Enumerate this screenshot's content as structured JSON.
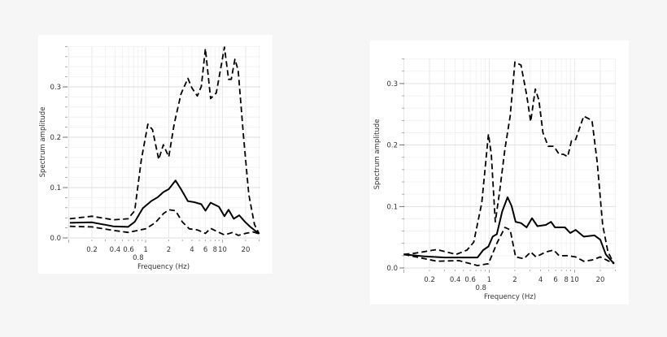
{
  "chart_data": [
    {
      "type": "line",
      "xlabel": "Frequency (Hz)",
      "ylabel": "Spectrum amplitude",
      "xscale": "log",
      "xlim": [
        0.1,
        30
      ],
      "ylim": [
        0,
        0.38
      ],
      "grid": true,
      "xticks": [
        "0.2",
        "0.4",
        "0.6",
        "0.8",
        "1",
        "2",
        "4",
        "6",
        "8",
        "10",
        "20"
      ],
      "xtick_values": [
        0.2,
        0.4,
        0.6,
        0.8,
        1,
        2,
        4,
        6,
        8,
        10,
        20
      ],
      "yticks": [
        "0.0",
        "0.1",
        "0.2",
        "0.3"
      ],
      "ytick_values": [
        0,
        0.1,
        0.2,
        0.3
      ],
      "series": [
        {
          "style": "dashed",
          "color": "#000000",
          "points": [
            [
              0.103,
              0.038
            ],
            [
              0.2,
              0.043
            ],
            [
              0.38,
              0.036
            ],
            [
              0.59,
              0.038
            ],
            [
              0.72,
              0.054
            ],
            [
              0.88,
              0.156
            ],
            [
              1.07,
              0.226
            ],
            [
              1.23,
              0.215
            ],
            [
              1.48,
              0.156
            ],
            [
              1.7,
              0.185
            ],
            [
              2.0,
              0.161
            ],
            [
              2.35,
              0.226
            ],
            [
              2.88,
              0.286
            ],
            [
              3.55,
              0.317
            ],
            [
              4.0,
              0.298
            ],
            [
              4.7,
              0.282
            ],
            [
              5.3,
              0.301
            ],
            [
              5.99,
              0.376
            ],
            [
              7.0,
              0.277
            ],
            [
              8.3,
              0.288
            ],
            [
              9.8,
              0.349
            ],
            [
              10.6,
              0.379
            ],
            [
              12.0,
              0.315
            ],
            [
              13,
              0.315
            ],
            [
              14.5,
              0.355
            ],
            [
              16,
              0.333
            ],
            [
              18.8,
              0.199
            ],
            [
              22,
              0.086
            ],
            [
              26,
              0.027
            ],
            [
              30,
              0.008
            ]
          ]
        },
        {
          "style": "solid",
          "color": "#000000",
          "points": [
            [
              0.103,
              0.03
            ],
            [
              0.2,
              0.031
            ],
            [
              0.38,
              0.023
            ],
            [
              0.59,
              0.022
            ],
            [
              0.72,
              0.032
            ],
            [
              0.92,
              0.059
            ],
            [
              1.18,
              0.073
            ],
            [
              1.44,
              0.081
            ],
            [
              1.7,
              0.091
            ],
            [
              2.0,
              0.097
            ],
            [
              2.45,
              0.114
            ],
            [
              2.88,
              0.097
            ],
            [
              3.55,
              0.073
            ],
            [
              4.3,
              0.071
            ],
            [
              5.3,
              0.067
            ],
            [
              6.0,
              0.054
            ],
            [
              7.0,
              0.07
            ],
            [
              9,
              0.062
            ],
            [
              10.6,
              0.043
            ],
            [
              12,
              0.056
            ],
            [
              14,
              0.038
            ],
            [
              16.5,
              0.045
            ],
            [
              19.6,
              0.032
            ],
            [
              23,
              0.022
            ],
            [
              30,
              0.008
            ]
          ]
        },
        {
          "style": "dashed",
          "color": "#000000",
          "points": [
            [
              0.103,
              0.023
            ],
            [
              0.2,
              0.022
            ],
            [
              0.38,
              0.015
            ],
            [
              0.59,
              0.011
            ],
            [
              1.0,
              0.018
            ],
            [
              1.33,
              0.03
            ],
            [
              1.7,
              0.048
            ],
            [
              2.0,
              0.056
            ],
            [
              2.45,
              0.054
            ],
            [
              3.0,
              0.032
            ],
            [
              3.7,
              0.018
            ],
            [
              4.7,
              0.016
            ],
            [
              6,
              0.009
            ],
            [
              7,
              0.019
            ],
            [
              9,
              0.011
            ],
            [
              10.6,
              0.006
            ],
            [
              13.6,
              0.011
            ],
            [
              16,
              0.005
            ],
            [
              20,
              0.009
            ],
            [
              25,
              0.012
            ],
            [
              30,
              0.008
            ]
          ]
        }
      ]
    },
    {
      "type": "line",
      "xlabel": "Frequency (Hz)",
      "ylabel": "Spectrum amplitude",
      "xscale": "log",
      "xlim": [
        0.1,
        30
      ],
      "ylim": [
        0,
        0.34
      ],
      "grid": true,
      "xticks": [
        "0.2",
        "0.4",
        "0.6",
        "0.8",
        "1",
        "2",
        "4",
        "6",
        "8",
        "10",
        "20"
      ],
      "xtick_values": [
        0.2,
        0.4,
        0.6,
        0.8,
        1,
        2,
        4,
        6,
        8,
        10,
        20
      ],
      "yticks": [
        "0.0",
        "0.1",
        "0.2",
        "0.3"
      ],
      "ytick_values": [
        0,
        0.1,
        0.2,
        0.3
      ],
      "series": [
        {
          "style": "dashed",
          "color": "#000000",
          "points": [
            [
              0.1,
              0.022
            ],
            [
              0.135,
              0.024
            ],
            [
              0.245,
              0.03
            ],
            [
              0.41,
              0.022
            ],
            [
              0.55,
              0.029
            ],
            [
              0.66,
              0.042
            ],
            [
              0.82,
              0.106
            ],
            [
              0.98,
              0.218
            ],
            [
              1.06,
              0.185
            ],
            [
              1.18,
              0.075
            ],
            [
              1.32,
              0.123
            ],
            [
              1.53,
              0.194
            ],
            [
              1.76,
              0.247
            ],
            [
              2.0,
              0.335
            ],
            [
              2.36,
              0.33
            ],
            [
              2.74,
              0.282
            ],
            [
              3.06,
              0.238
            ],
            [
              3.47,
              0.291
            ],
            [
              3.82,
              0.273
            ],
            [
              4.26,
              0.22
            ],
            [
              4.9,
              0.198
            ],
            [
              5.7,
              0.198
            ],
            [
              6.6,
              0.185
            ],
            [
              7.4,
              0.185
            ],
            [
              8.3,
              0.181
            ],
            [
              9.2,
              0.207
            ],
            [
              10.3,
              0.209
            ],
            [
              12.8,
              0.247
            ],
            [
              16.0,
              0.24
            ],
            [
              18.4,
              0.172
            ],
            [
              21.3,
              0.07
            ],
            [
              24.6,
              0.026
            ],
            [
              29,
              0.007
            ]
          ]
        },
        {
          "style": "solid",
          "color": "#000000",
          "points": [
            [
              0.1,
              0.022
            ],
            [
              0.17,
              0.019
            ],
            [
              0.3,
              0.017
            ],
            [
              0.73,
              0.017
            ],
            [
              0.85,
              0.029
            ],
            [
              0.98,
              0.035
            ],
            [
              1.1,
              0.051
            ],
            [
              1.23,
              0.055
            ],
            [
              1.42,
              0.092
            ],
            [
              1.64,
              0.115
            ],
            [
              1.83,
              0.101
            ],
            [
              2.04,
              0.075
            ],
            [
              2.36,
              0.073
            ],
            [
              2.74,
              0.066
            ],
            [
              3.17,
              0.081
            ],
            [
              3.67,
              0.068
            ],
            [
              4.6,
              0.07
            ],
            [
              5.3,
              0.075
            ],
            [
              5.9,
              0.066
            ],
            [
              7.7,
              0.066
            ],
            [
              8.9,
              0.057
            ],
            [
              10.3,
              0.062
            ],
            [
              12.8,
              0.051
            ],
            [
              17.1,
              0.053
            ],
            [
              20,
              0.046
            ],
            [
              23.2,
              0.022
            ],
            [
              29,
              0.007
            ]
          ]
        },
        {
          "style": "dashed",
          "color": "#000000",
          "points": [
            [
              0.1,
              0.022
            ],
            [
              0.245,
              0.011
            ],
            [
              0.44,
              0.012
            ],
            [
              0.73,
              0.004
            ],
            [
              0.98,
              0.007
            ],
            [
              1.23,
              0.04
            ],
            [
              1.53,
              0.066
            ],
            [
              1.76,
              0.062
            ],
            [
              2.04,
              0.018
            ],
            [
              2.55,
              0.015
            ],
            [
              3.06,
              0.026
            ],
            [
              3.54,
              0.018
            ],
            [
              4.6,
              0.026
            ],
            [
              5.7,
              0.029
            ],
            [
              6.6,
              0.02
            ],
            [
              8.3,
              0.02
            ],
            [
              10.3,
              0.018
            ],
            [
              12.8,
              0.011
            ],
            [
              16,
              0.013
            ],
            [
              20,
              0.018
            ],
            [
              29,
              0.007
            ]
          ]
        }
      ]
    }
  ]
}
